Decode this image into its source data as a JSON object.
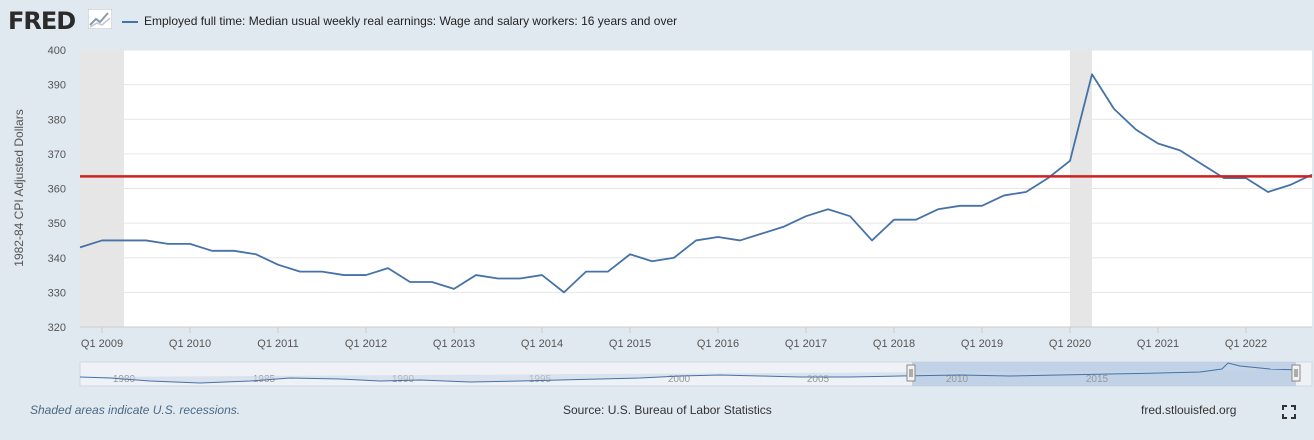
{
  "header": {
    "logo_text": "FRED",
    "legend_label": "Employed full time: Median usual weekly real earnings: Wage and salary workers: 16 years and over"
  },
  "footer": {
    "recession_note": "Shaded areas indicate U.S. recessions.",
    "source": "Source: U.S. Bureau of Labor Statistics",
    "site": "fred.stlouisfed.org"
  },
  "navigator": {
    "year_labels": [
      "1980",
      "1985",
      "1990",
      "1995",
      "2000",
      "2005",
      "2010",
      "2015"
    ]
  },
  "colors": {
    "series": "#4572a7",
    "reference_line": "#cc2222",
    "recession": "#e6e6e6"
  },
  "chart_data": {
    "type": "line",
    "ylabel": "1982-84 CPI Adjusted Dollars",
    "ylim": [
      320,
      400
    ],
    "yticks": [
      320,
      330,
      340,
      350,
      360,
      370,
      380,
      390,
      400
    ],
    "x_tick_labels": [
      "Q1 2009",
      "Q1 2010",
      "Q1 2011",
      "Q1 2012",
      "Q1 2013",
      "Q1 2014",
      "Q1 2015",
      "Q1 2016",
      "Q1 2017",
      "Q1 2018",
      "Q1 2019",
      "Q1 2020",
      "Q1 2021",
      "Q1 2022"
    ],
    "x_start": "Q4 2008",
    "x_end": "Q4 2022",
    "recessions": [
      [
        "Q4 2008",
        "Q2 2009"
      ],
      [
        "Q1 2020",
        "Q2 2020"
      ]
    ],
    "reference_line": 363.5,
    "series": [
      {
        "x": [
          "Q4 2008",
          "Q1 2009",
          "Q2 2009",
          "Q3 2009",
          "Q4 2009",
          "Q1 2010",
          "Q2 2010",
          "Q3 2010",
          "Q4 2010",
          "Q1 2011",
          "Q2 2011",
          "Q3 2011",
          "Q4 2011",
          "Q1 2012",
          "Q2 2012",
          "Q3 2012",
          "Q4 2012",
          "Q1 2013",
          "Q2 2013",
          "Q3 2013",
          "Q4 2013",
          "Q1 2014",
          "Q2 2014",
          "Q3 2014",
          "Q4 2014",
          "Q1 2015",
          "Q2 2015",
          "Q3 2015",
          "Q4 2015",
          "Q1 2016",
          "Q2 2016",
          "Q3 2016",
          "Q4 2016",
          "Q1 2017",
          "Q2 2017",
          "Q3 2017",
          "Q4 2017",
          "Q1 2018",
          "Q2 2018",
          "Q3 2018",
          "Q4 2018",
          "Q1 2019",
          "Q2 2019",
          "Q3 2019",
          "Q4 2019",
          "Q1 2020",
          "Q2 2020",
          "Q3 2020",
          "Q4 2020",
          "Q1 2021",
          "Q2 2021",
          "Q3 2021",
          "Q4 2021",
          "Q1 2022",
          "Q2 2022",
          "Q3 2022",
          "Q4 2022"
        ],
        "values": [
          343,
          345,
          345,
          345,
          344,
          344,
          342,
          342,
          341,
          338,
          336,
          336,
          335,
          335,
          337,
          333,
          333,
          331,
          335,
          334,
          334,
          335,
          330,
          336,
          336,
          341,
          339,
          340,
          345,
          346,
          345,
          347,
          349,
          352,
          354,
          352,
          345,
          351,
          351,
          354,
          355,
          355,
          358,
          359,
          363,
          368,
          393,
          383,
          377,
          373,
          371,
          367,
          363,
          363,
          359,
          361,
          364
        ]
      }
    ]
  }
}
